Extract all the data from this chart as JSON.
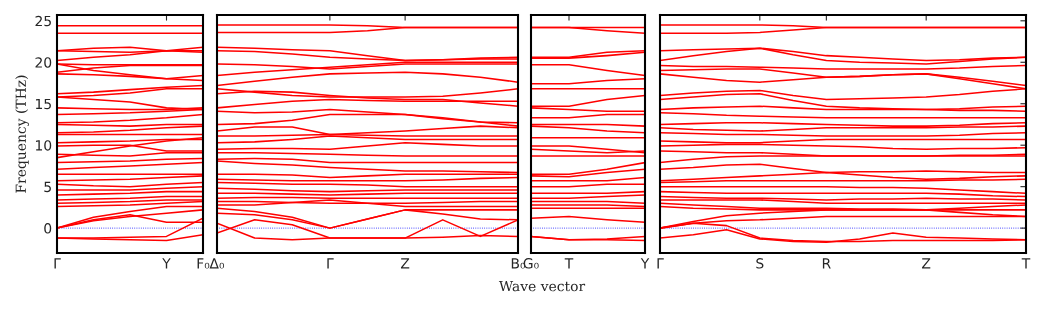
{
  "chart_data": [
    {
      "type": "line",
      "ylabel": "Frequency (THz)",
      "ylim": [
        -3,
        25.7
      ],
      "yticks": [
        0,
        5,
        10,
        15,
        20,
        25
      ],
      "categories": [
        "Γ",
        null,
        null,
        "Y",
        "F₀"
      ],
      "marker": "none",
      "line_style": "solid",
      "ref_lines": [
        {
          "axis": "y",
          "value": 0,
          "color": "#0000ff",
          "line_style": "dotted"
        }
      ],
      "series": [
        {
          "color": "#ff0000",
          "values": [
            24.4,
            24.4,
            24.4,
            24.4,
            24.4
          ]
        },
        {
          "color": "#ff0000",
          "values": [
            23.5,
            23.5,
            23.5,
            23.5,
            23.5
          ]
        },
        {
          "color": "#ff0000",
          "values": [
            21.4,
            21.7,
            21.8,
            21.4,
            21.8
          ]
        },
        {
          "color": "#ff0000",
          "values": [
            21.4,
            21.3,
            21.2,
            21.4,
            21.2
          ]
        },
        {
          "color": "#ff0000",
          "values": [
            20.2,
            20.6,
            20.9,
            21.4,
            21.4
          ]
        },
        {
          "color": "#ff0000",
          "values": [
            19.8,
            19.7,
            19.7,
            19.7,
            19.7
          ]
        },
        {
          "color": "#ff0000",
          "values": [
            18.8,
            19.3,
            19.6,
            19.6,
            19.6
          ]
        },
        {
          "color": "#ff0000",
          "values": [
            18.6,
            18.5,
            18.3,
            18.0,
            18.4
          ]
        },
        {
          "color": "#ff0000",
          "values": [
            19.8,
            19.0,
            18.5,
            18.0,
            17.8
          ]
        },
        {
          "color": "#ff0000",
          "values": [
            16.2,
            16.4,
            16.7,
            17.0,
            17.2
          ]
        },
        {
          "color": "#ff0000",
          "values": [
            15.8,
            16.0,
            16.3,
            16.8,
            16.8
          ]
        },
        {
          "color": "#ff0000",
          "values": [
            15.8,
            15.5,
            15.2,
            14.5,
            14.3
          ]
        },
        {
          "color": "#ff0000",
          "values": [
            14.5,
            14.4,
            14.3,
            14.3,
            14.5
          ]
        },
        {
          "color": "#ff0000",
          "values": [
            13.7,
            13.8,
            13.9,
            14.1,
            14.3
          ]
        },
        {
          "color": "#ff0000",
          "values": [
            12.7,
            12.8,
            13.0,
            13.3,
            13.7
          ]
        },
        {
          "color": "#ff0000",
          "values": [
            12.5,
            12.4,
            12.3,
            12.5,
            12.5
          ]
        },
        {
          "color": "#ff0000",
          "values": [
            11.5,
            11.6,
            11.8,
            12.1,
            12.3
          ]
        },
        {
          "color": "#ff0000",
          "values": [
            11.3,
            11.3,
            11.3,
            11.3,
            11.3
          ]
        },
        {
          "color": "#ff0000",
          "values": [
            10.3,
            10.4,
            10.5,
            10.7,
            10.7
          ]
        },
        {
          "color": "#ff0000",
          "values": [
            9.9,
            10.0,
            10.0,
            9.3,
            9.3
          ]
        },
        {
          "color": "#ff0000",
          "values": [
            8.5,
            9.2,
            9.9,
            10.5,
            10.9
          ]
        },
        {
          "color": "#ff0000",
          "values": [
            8.9,
            8.8,
            8.7,
            9.1,
            9.1
          ]
        },
        {
          "color": "#ff0000",
          "values": [
            7.9,
            8.0,
            8.1,
            8.3,
            8.4
          ]
        },
        {
          "color": "#ff0000",
          "values": [
            7.1,
            7.3,
            7.5,
            7.7,
            7.9
          ]
        },
        {
          "color": "#ff0000",
          "values": [
            6.5,
            6.5,
            6.5,
            6.5,
            6.5
          ]
        },
        {
          "color": "#ff0000",
          "values": [
            5.7,
            5.8,
            5.9,
            6.1,
            6.3
          ]
        },
        {
          "color": "#ff0000",
          "values": [
            5.3,
            5.1,
            5.0,
            5.3,
            5.5
          ]
        },
        {
          "color": "#ff0000",
          "values": [
            4.6,
            4.6,
            4.6,
            4.8,
            5.0
          ]
        },
        {
          "color": "#ff0000",
          "values": [
            4.0,
            4.1,
            4.2,
            4.4,
            4.4
          ]
        },
        {
          "color": "#ff0000",
          "values": [
            3.4,
            3.5,
            3.6,
            3.8,
            3.8
          ]
        },
        {
          "color": "#ff0000",
          "values": [
            3.0,
            3.1,
            3.2,
            3.4,
            3.4
          ]
        },
        {
          "color": "#ff0000",
          "values": [
            2.6,
            2.7,
            2.8,
            3.0,
            3.2
          ]
        },
        {
          "color": "#ff0000",
          "values": [
            0,
            1.3,
            2.0,
            2.6,
            2.6
          ]
        },
        {
          "color": "#ff0000",
          "values": [
            0,
            0.9,
            1.4,
            1.8,
            2.2
          ]
        },
        {
          "color": "#ff0000",
          "values": [
            0,
            1.0,
            1.6,
            0.7,
            0.7
          ]
        },
        {
          "color": "#ff0000",
          "values": [
            -1.2,
            -1.2,
            -1.1,
            -1.0,
            1.2
          ]
        },
        {
          "color": "#ff0000",
          "values": [
            -1.2,
            -1.3,
            -1.4,
            -1.5,
            -0.8
          ]
        }
      ]
    },
    {
      "type": "line",
      "ylim": [
        -3,
        25.7
      ],
      "yticks": [
        0,
        5,
        10,
        15,
        20,
        25
      ],
      "tick_labels": "x",
      "categories": [
        "Δ₀",
        null,
        null,
        "Γ",
        null,
        "Z",
        null,
        null,
        "B₀"
      ],
      "marker": "none",
      "line_style": "solid",
      "ref_lines": [
        {
          "axis": "y",
          "value": 0,
          "color": "#0000ff",
          "line_style": "dotted"
        }
      ],
      "series": [
        {
          "color": "#ff0000",
          "values": [
            24.5,
            24.5,
            24.5,
            24.5,
            24.4,
            24.2,
            24.2,
            24.2,
            24.2
          ]
        },
        {
          "color": "#ff0000",
          "values": [
            23.6,
            23.6,
            23.6,
            23.6,
            23.8,
            24.2,
            24.2,
            24.2,
            24.2
          ]
        },
        {
          "color": "#ff0000",
          "values": [
            21.8,
            21.7,
            21.5,
            21.4,
            20.8,
            20.2,
            20.3,
            20.5,
            20.6
          ]
        },
        {
          "color": "#ff0000",
          "values": [
            21.4,
            21.3,
            21.0,
            20.6,
            20.4,
            20.2,
            20.3,
            20.4,
            20.4
          ]
        },
        {
          "color": "#ff0000",
          "values": [
            19.8,
            19.7,
            19.5,
            19.2,
            19.5,
            19.8,
            19.8,
            19.8,
            19.8
          ]
        },
        {
          "color": "#ff0000",
          "values": [
            18.4,
            18.8,
            19.1,
            19.4,
            19.7,
            20.0,
            20.0,
            20.0,
            20.0
          ]
        },
        {
          "color": "#ff0000",
          "values": [
            17.2,
            17.7,
            18.2,
            18.6,
            18.7,
            18.8,
            18.6,
            18.2,
            17.6
          ]
        },
        {
          "color": "#ff0000",
          "values": [
            16.8,
            16.4,
            16.0,
            15.8,
            15.8,
            15.8,
            15.9,
            16.3,
            16.8
          ]
        },
        {
          "color": "#ff0000",
          "values": [
            16.2,
            16.5,
            16.4,
            16.0,
            15.7,
            15.5,
            15.5,
            15.1,
            14.7
          ]
        },
        {
          "color": "#ff0000",
          "values": [
            14.5,
            14.9,
            15.3,
            15.5,
            15.4,
            15.3,
            15.3,
            15.3,
            15.3
          ]
        },
        {
          "color": "#ff0000",
          "values": [
            14.1,
            13.9,
            14.0,
            14.3,
            14.0,
            13.7,
            13.2,
            12.8,
            12.7
          ]
        },
        {
          "color": "#ff0000",
          "values": [
            12.5,
            12.6,
            13.0,
            13.7,
            13.7,
            13.7,
            13.3,
            12.8,
            12.3
          ]
        },
        {
          "color": "#ff0000",
          "values": [
            11.7,
            12.2,
            12.2,
            11.3,
            11.5,
            11.7,
            12.0,
            12.3,
            12.1
          ]
        },
        {
          "color": "#ff0000",
          "values": [
            11.1,
            11.1,
            11.2,
            11.3,
            11.2,
            11.1,
            11.1,
            11.1,
            11.1
          ]
        },
        {
          "color": "#ff0000",
          "values": [
            10.3,
            10.4,
            10.7,
            11.1,
            10.9,
            10.7,
            10.7,
            10.7,
            10.7
          ]
        },
        {
          "color": "#ff0000",
          "values": [
            9.5,
            9.6,
            9.6,
            9.5,
            9.9,
            10.3,
            10.1,
            9.9,
            9.9
          ]
        },
        {
          "color": "#ff0000",
          "values": [
            9.1,
            9.1,
            9.0,
            8.9,
            8.8,
            8.7,
            8.7,
            8.7,
            8.7
          ]
        },
        {
          "color": "#ff0000",
          "values": [
            8.3,
            8.4,
            8.3,
            7.9,
            7.9,
            7.9,
            7.9,
            7.9,
            7.9
          ]
        },
        {
          "color": "#ff0000",
          "values": [
            8.1,
            7.8,
            7.6,
            7.3,
            7.1,
            6.9,
            6.9,
            6.8,
            6.7
          ]
        },
        {
          "color": "#ff0000",
          "values": [
            6.5,
            6.5,
            6.4,
            6.1,
            6.3,
            6.5,
            6.5,
            6.5,
            6.5
          ]
        },
        {
          "color": "#ff0000",
          "values": [
            5.9,
            5.8,
            5.7,
            5.7,
            5.7,
            5.7,
            5.8,
            6.0,
            6.1
          ]
        },
        {
          "color": "#ff0000",
          "values": [
            5.5,
            5.4,
            5.3,
            5.3,
            5.2,
            5.0,
            5.0,
            5.0,
            5.0
          ]
        },
        {
          "color": "#ff0000",
          "values": [
            4.8,
            4.7,
            4.5,
            4.4,
            4.5,
            4.6,
            4.6,
            4.6,
            4.6
          ]
        },
        {
          "color": "#ff0000",
          "values": [
            4.2,
            4.2,
            4.1,
            4.0,
            4.1,
            4.2,
            4.2,
            4.2,
            4.2
          ]
        },
        {
          "color": "#ff0000",
          "values": [
            3.6,
            3.7,
            3.7,
            3.6,
            3.6,
            3.6,
            3.6,
            3.6,
            3.6
          ]
        },
        {
          "color": "#ff0000",
          "values": [
            3.2,
            3.2,
            3.1,
            3.0,
            3.0,
            3.0,
            3.1,
            3.2,
            3.2
          ]
        },
        {
          "color": "#ff0000",
          "values": [
            2.8,
            2.8,
            3.1,
            3.4,
            3.0,
            2.6,
            2.6,
            2.6,
            2.6
          ]
        },
        {
          "color": "#ff0000",
          "values": [
            2.4,
            2.0,
            1.3,
            0,
            1.1,
            2.2,
            2.2,
            2.2,
            2.2
          ]
        },
        {
          "color": "#ff0000",
          "values": [
            1.8,
            1.6,
            1.0,
            0,
            1.1,
            2.2,
            1.7,
            1.1,
            1.0
          ]
        },
        {
          "color": "#ff0000",
          "values": [
            -0.6,
            1.0,
            0.4,
            -1.2,
            -1.2,
            -1.2,
            1.0,
            -1.0,
            1.0
          ]
        },
        {
          "color": "#ff0000",
          "values": [
            0.6,
            -1.2,
            -1.4,
            -1.2,
            -1.2,
            -1.2,
            -1.1,
            -0.9,
            -1.0
          ]
        }
      ]
    },
    {
      "type": "line",
      "xlabel": "Wave vector",
      "ylim": [
        -3,
        25.7
      ],
      "yticks": [
        0,
        5,
        10,
        15,
        20,
        25
      ],
      "tick_labels": "x",
      "categories": [
        "G₀",
        "T",
        null,
        "Y"
      ],
      "marker": "none",
      "line_style": "solid",
      "ref_lines": [
        {
          "axis": "y",
          "value": 0,
          "color": "#0000ff",
          "line_style": "dotted"
        }
      ],
      "series": [
        {
          "color": "#ff0000",
          "values": [
            24.2,
            24.2,
            24.2,
            24.2
          ]
        },
        {
          "color": "#ff0000",
          "values": [
            24.2,
            24.2,
            23.8,
            23.5
          ]
        },
        {
          "color": "#ff0000",
          "values": [
            20.6,
            20.6,
            21.2,
            21.4
          ]
        },
        {
          "color": "#ff0000",
          "values": [
            20.5,
            20.5,
            20.8,
            21.2
          ]
        },
        {
          "color": "#ff0000",
          "values": [
            19.7,
            19.7,
            19.0,
            18.4
          ]
        },
        {
          "color": "#ff0000",
          "values": [
            17.4,
            17.4,
            17.8,
            18.0
          ]
        },
        {
          "color": "#ff0000",
          "values": [
            16.8,
            16.8,
            16.8,
            16.8
          ]
        },
        {
          "color": "#ff0000",
          "values": [
            14.7,
            14.7,
            15.5,
            16.0
          ]
        },
        {
          "color": "#ff0000",
          "values": [
            14.5,
            14.3,
            14.1,
            14.1
          ]
        },
        {
          "color": "#ff0000",
          "values": [
            13.3,
            13.3,
            13.7,
            13.7
          ]
        },
        {
          "color": "#ff0000",
          "values": [
            12.5,
            12.5,
            12.5,
            12.3
          ]
        },
        {
          "color": "#ff0000",
          "values": [
            12.3,
            12.1,
            11.7,
            11.5
          ]
        },
        {
          "color": "#ff0000",
          "values": [
            10.9,
            10.9,
            10.9,
            10.9
          ]
        },
        {
          "color": "#ff0000",
          "values": [
            9.9,
            9.9,
            9.5,
            9.1
          ]
        },
        {
          "color": "#ff0000",
          "values": [
            9.5,
            9.3,
            9.1,
            9.3
          ]
        },
        {
          "color": "#ff0000",
          "values": [
            8.7,
            8.7,
            8.7,
            8.7
          ]
        },
        {
          "color": "#ff0000",
          "values": [
            6.5,
            6.5,
            7.1,
            7.9
          ]
        },
        {
          "color": "#ff0000",
          "values": [
            6.3,
            6.2,
            6.7,
            7.1
          ]
        },
        {
          "color": "#ff0000",
          "values": [
            5.7,
            5.7,
            5.7,
            6.1
          ]
        },
        {
          "color": "#ff0000",
          "values": [
            5.0,
            5.0,
            5.3,
            5.3
          ]
        },
        {
          "color": "#ff0000",
          "values": [
            4.2,
            4.2,
            4.2,
            4.4
          ]
        },
        {
          "color": "#ff0000",
          "values": [
            3.6,
            3.6,
            3.8,
            4.0
          ]
        },
        {
          "color": "#ff0000",
          "values": [
            3.2,
            3.2,
            3.2,
            3.0
          ]
        },
        {
          "color": "#ff0000",
          "values": [
            2.8,
            2.8,
            2.8,
            2.6
          ]
        },
        {
          "color": "#ff0000",
          "values": [
            2.4,
            2.4,
            2.4,
            2.4
          ]
        },
        {
          "color": "#ff0000",
          "values": [
            1.2,
            1.4,
            1.0,
            0.7
          ]
        },
        {
          "color": "#ff0000",
          "values": [
            -1.0,
            -1.4,
            -1.3,
            -1.0
          ]
        },
        {
          "color": "#ff0000",
          "values": [
            -1.0,
            -1.4,
            -1.4,
            -1.5
          ]
        }
      ]
    },
    {
      "type": "line",
      "ylim": [
        -3,
        25.7
      ],
      "yticks": [
        {
          "value": 0,
          "label": null
        },
        {
          "value": 5,
          "label": null
        },
        {
          "value": 10,
          "label": null
        },
        {
          "value": 15,
          "label": null
        },
        {
          "value": 20,
          "label": null
        },
        {
          "value": 25,
          "label": null
        }
      ],
      "tick_labels": "x",
      "categories": [
        "Γ",
        null,
        null,
        "S",
        null,
        "R",
        null,
        null,
        "Z",
        null,
        null,
        "T"
      ],
      "marker": "none",
      "line_style": "solid",
      "ref_lines": [
        {
          "axis": "y",
          "value": 0,
          "color": "#0000ff",
          "line_style": "dotted"
        }
      ],
      "series": [
        {
          "color": "#ff0000",
          "values": [
            24.5,
            24.5,
            24.5,
            24.5,
            24.4,
            24.2,
            24.2,
            24.2,
            24.2,
            24.2,
            24.2,
            24.2
          ]
        },
        {
          "color": "#ff0000",
          "values": [
            23.5,
            23.5,
            23.5,
            23.6,
            23.9,
            24.2,
            24.2,
            24.2,
            24.2,
            24.2,
            24.2,
            24.2
          ]
        },
        {
          "color": "#ff0000",
          "values": [
            21.4,
            21.5,
            21.6,
            21.7,
            21.3,
            20.8,
            20.6,
            20.4,
            20.2,
            20.3,
            20.5,
            20.6
          ]
        },
        {
          "color": "#ff0000",
          "values": [
            20.2,
            20.8,
            21.3,
            21.7,
            20.9,
            20.2,
            20.0,
            19.9,
            19.8,
            20.1,
            20.4,
            20.6
          ]
        },
        {
          "color": "#ff0000",
          "values": [
            19.6,
            19.5,
            19.5,
            19.4,
            19.3,
            19.2,
            19.2,
            19.2,
            19.2,
            19.3,
            19.5,
            19.6
          ]
        },
        {
          "color": "#ff0000",
          "values": [
            19.0,
            19.1,
            19.2,
            19.2,
            18.7,
            18.2,
            18.3,
            18.5,
            18.6,
            18.2,
            17.7,
            17.2
          ]
        },
        {
          "color": "#ff0000",
          "values": [
            18.6,
            18.2,
            17.8,
            17.6,
            17.9,
            18.2,
            18.3,
            18.5,
            18.6,
            18.0,
            17.4,
            16.8
          ]
        },
        {
          "color": "#ff0000",
          "values": [
            16.0,
            16.3,
            16.5,
            16.6,
            16.0,
            15.5,
            15.6,
            15.7,
            15.8,
            16.1,
            16.5,
            16.8
          ]
        },
        {
          "color": "#ff0000",
          "values": [
            15.5,
            15.8,
            16.1,
            16.2,
            15.4,
            14.7,
            14.5,
            14.4,
            14.3,
            14.4,
            14.6,
            14.7
          ]
        },
        {
          "color": "#ff0000",
          "values": [
            14.3,
            14.5,
            14.6,
            14.7,
            14.5,
            14.3,
            14.3,
            14.3,
            14.3,
            14.2,
            14.2,
            14.1
          ]
        },
        {
          "color": "#ff0000",
          "values": [
            13.9,
            13.8,
            13.6,
            13.5,
            13.4,
            13.3,
            13.3,
            13.3,
            13.3,
            13.3,
            13.3,
            13.3
          ]
        },
        {
          "color": "#ff0000",
          "values": [
            12.5,
            12.6,
            12.7,
            12.7,
            12.6,
            12.5,
            12.4,
            12.3,
            12.3,
            12.4,
            12.6,
            12.7
          ]
        },
        {
          "color": "#ff0000",
          "values": [
            12.1,
            11.9,
            11.8,
            11.7,
            11.9,
            12.1,
            12.1,
            12.1,
            12.1,
            12.2,
            12.2,
            12.3
          ]
        },
        {
          "color": "#ff0000",
          "values": [
            11.5,
            11.4,
            11.3,
            11.3,
            11.2,
            11.1,
            11.1,
            11.1,
            11.1,
            11.2,
            11.4,
            11.5
          ]
        },
        {
          "color": "#ff0000",
          "values": [
            10.5,
            10.4,
            10.3,
            10.3,
            10.5,
            10.7,
            10.7,
            10.7,
            10.7,
            10.7,
            10.7,
            10.7
          ]
        },
        {
          "color": "#ff0000",
          "values": [
            9.9,
            10.0,
            10.1,
            10.1,
            10.0,
            9.9,
            9.8,
            9.6,
            9.5,
            9.6,
            9.6,
            9.7
          ]
        },
        {
          "color": "#ff0000",
          "values": [
            9.3,
            9.2,
            9.1,
            9.1,
            8.9,
            8.7,
            8.7,
            8.7,
            8.7,
            8.8,
            8.8,
            8.9
          ]
        },
        {
          "color": "#ff0000",
          "values": [
            7.9,
            8.3,
            8.6,
            8.7,
            8.7,
            8.7,
            8.7,
            8.7,
            8.7,
            8.7,
            8.7,
            8.7
          ]
        },
        {
          "color": "#ff0000",
          "values": [
            7.1,
            7.3,
            7.6,
            7.7,
            7.2,
            6.7,
            6.8,
            6.8,
            6.9,
            6.8,
            6.7,
            6.7
          ]
        },
        {
          "color": "#ff0000",
          "values": [
            5.7,
            5.9,
            6.1,
            6.3,
            6.5,
            6.7,
            6.4,
            6.1,
            5.9,
            6.0,
            6.2,
            6.3
          ]
        },
        {
          "color": "#ff0000",
          "values": [
            5.5,
            5.6,
            5.7,
            5.7,
            5.7,
            5.7,
            5.7,
            5.7,
            5.7,
            5.8,
            5.8,
            5.9
          ]
        },
        {
          "color": "#ff0000",
          "values": [
            5.0,
            5.0,
            5.0,
            5.0,
            5.0,
            5.0,
            4.9,
            4.9,
            4.8,
            4.6,
            4.4,
            4.2
          ]
        },
        {
          "color": "#ff0000",
          "values": [
            4.4,
            4.3,
            4.2,
            4.2,
            4.2,
            4.2,
            4.2,
            4.2,
            4.2,
            4.1,
            3.9,
            3.8
          ]
        },
        {
          "color": "#ff0000",
          "values": [
            3.8,
            3.7,
            3.6,
            3.6,
            3.5,
            3.4,
            3.5,
            3.5,
            3.6,
            3.5,
            3.5,
            3.4
          ]
        },
        {
          "color": "#ff0000",
          "values": [
            3.4,
            3.4,
            3.4,
            3.4,
            3.2,
            3.0,
            3.0,
            3.0,
            3.0,
            3.0,
            3.0,
            3.0
          ]
        },
        {
          "color": "#ff0000",
          "values": [
            3.0,
            2.8,
            2.6,
            2.4,
            2.4,
            2.4,
            2.3,
            2.3,
            2.2,
            2.4,
            2.6,
            2.8
          ]
        },
        {
          "color": "#ff0000",
          "values": [
            2.6,
            2.4,
            2.3,
            2.2,
            2.2,
            2.2,
            2.2,
            2.2,
            2.2,
            1.9,
            1.6,
            1.4
          ]
        },
        {
          "color": "#ff0000",
          "values": [
            0,
            0.8,
            1.5,
            1.8,
            2.0,
            2.2,
            2.2,
            2.2,
            2.2,
            2.2,
            2.2,
            2.2
          ]
        },
        {
          "color": "#ff0000",
          "values": [
            0,
            0.6,
            0.9,
            1.0,
            1.2,
            1.4,
            1.4,
            1.4,
            1.4,
            1.4,
            1.4,
            1.4
          ]
        },
        {
          "color": "#ff0000",
          "values": [
            -1.2,
            -0.8,
            -0.2,
            -1.3,
            -1.6,
            -1.7,
            -1.3,
            -0.6,
            -1.1,
            -1.2,
            -1.3,
            -1.4
          ]
        },
        {
          "color": "#ff0000",
          "values": [
            0,
            0.6,
            0.3,
            -1.2,
            -1.5,
            -1.6,
            -1.6,
            -1.5,
            -1.5,
            -1.5,
            -1.5,
            -1.4
          ]
        }
      ]
    }
  ]
}
